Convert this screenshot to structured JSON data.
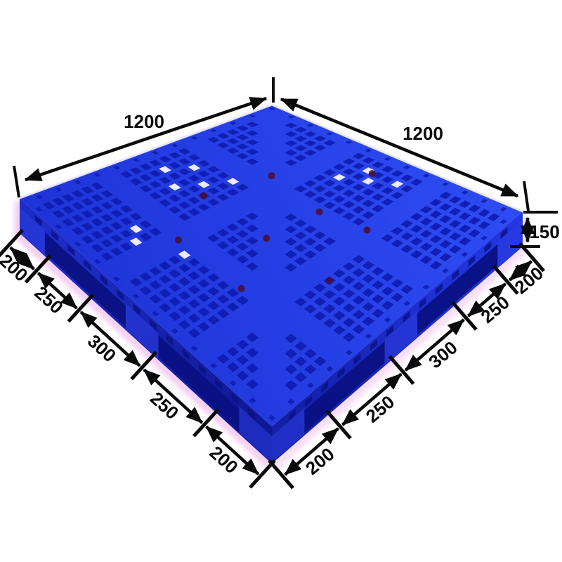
{
  "figure": {
    "description": "Blue plastic pallet photographed at an angle on a white background, annotated with black dimension arrows",
    "background": "#ffffff",
    "annotation_ink": "#0a0a0a",
    "pallet": {
      "top_deck_light": "#2f4df5",
      "top_deck_shade": "#1e33d6",
      "hole": "#0e1cb0",
      "left_side": "#1d2cc4",
      "left_side_shade": "#0f1894",
      "right_side": "#2236e0",
      "right_side_shade": "#131fa6",
      "fork_window": "#0a1183",
      "foot_light": "#2b3ee0",
      "rim_highlight": "#ece9fb",
      "glow": "#f2c3ef",
      "glow_soft": "#f7d9f5",
      "light_hole": "#f8f5ff",
      "plug_mark": "#4a0d2e"
    }
  },
  "dimensions": {
    "top_left_edge": {
      "label": "1200"
    },
    "top_right_edge": {
      "label": "1200"
    },
    "height": {
      "label": "150"
    },
    "left_edge_segments": [
      "200",
      "250",
      "300",
      "250",
      "200"
    ],
    "right_edge_segments": [
      "200",
      "250",
      "300",
      "250",
      "200"
    ]
  }
}
